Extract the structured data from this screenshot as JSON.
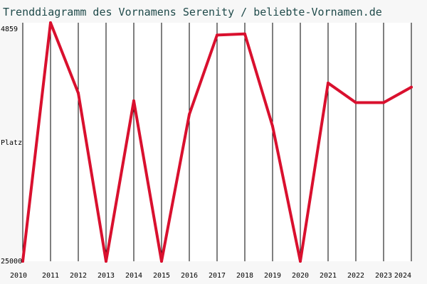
{
  "chart_data": {
    "type": "line",
    "title": "Trenddiagramm des Vornamens Serenity / beliebte-Vornamen.de",
    "xlabel": "",
    "ylabel": "Platz",
    "y_inverted": true,
    "ylim": [
      4859,
      25000
    ],
    "y_tick_labels": [
      "4859",
      "Platz",
      "25000"
    ],
    "categories": [
      "2010",
      "2011",
      "2012",
      "2013",
      "2014",
      "2015",
      "2016",
      "2017",
      "2018",
      "2019",
      "2020",
      "2021",
      "2022",
      "2023",
      "2024"
    ],
    "series": [
      {
        "name": "Serenity",
        "color": "#d9102e",
        "values": [
          25000,
          4859,
          10800,
          25000,
          11450,
          25000,
          12600,
          5900,
          5800,
          13600,
          25000,
          9950,
          11600,
          11600,
          10300
        ]
      }
    ],
    "grid": true
  }
}
